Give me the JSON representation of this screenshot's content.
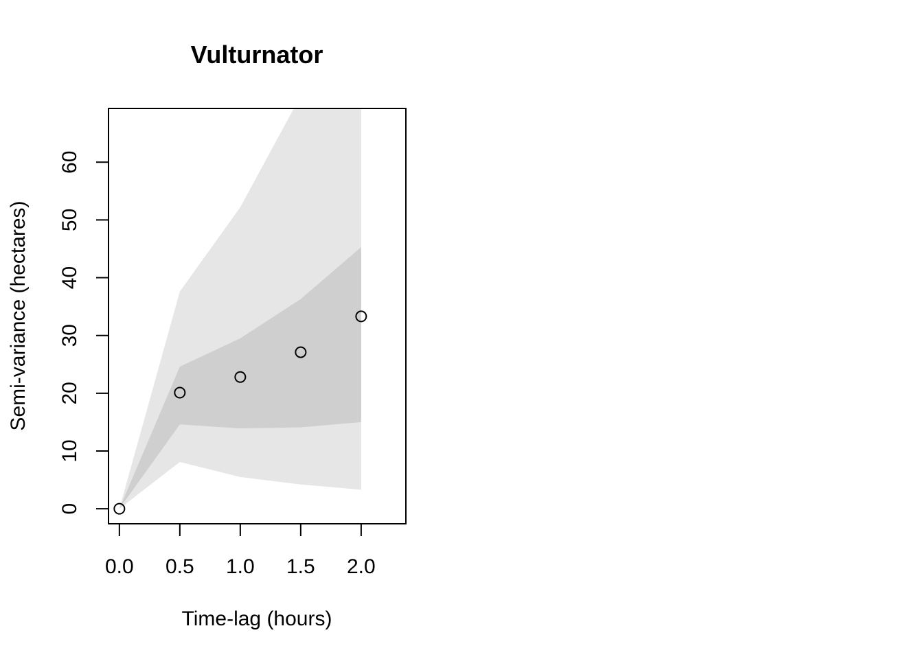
{
  "chart_data": {
    "type": "area",
    "title": "Vulturnator",
    "xlabel": "Time-lag (hours)",
    "ylabel": "Semi-variance (hectares)",
    "xlim": [
      -0.09,
      2.37
    ],
    "ylim": [
      -2.6,
      69.3
    ],
    "x_ticks": [
      0.0,
      0.5,
      1.0,
      1.5,
      2.0
    ],
    "x_tick_labels": [
      "0.0",
      "0.5",
      "1.0",
      "1.5",
      "2.0"
    ],
    "y_ticks": [
      0,
      10,
      20,
      30,
      40,
      50,
      60
    ],
    "y_tick_labels": [
      "0",
      "10",
      "20",
      "30",
      "40",
      "50",
      "60"
    ],
    "grid": false,
    "bands": [
      {
        "x": [
          0,
          0.5,
          1.0,
          1.5,
          2.0
        ],
        "lower": [
          0,
          8.1,
          5.5,
          4.2,
          3.3
        ],
        "upper": [
          0,
          37.6,
          52.2,
          71.5,
          80.0
        ],
        "color": "#e6e6e6"
      },
      {
        "x": [
          0,
          0.5,
          1.0,
          1.5,
          2.0
        ],
        "lower": [
          0,
          14.6,
          13.9,
          14.1,
          15.0
        ],
        "upper": [
          0,
          24.6,
          29.5,
          36.3,
          45.3
        ],
        "color": "#cfcfcf"
      }
    ],
    "points": {
      "x": [
        0,
        0.5,
        1.0,
        1.5,
        2.0
      ],
      "y": [
        0,
        20.1,
        22.8,
        27.1,
        33.3
      ]
    }
  }
}
